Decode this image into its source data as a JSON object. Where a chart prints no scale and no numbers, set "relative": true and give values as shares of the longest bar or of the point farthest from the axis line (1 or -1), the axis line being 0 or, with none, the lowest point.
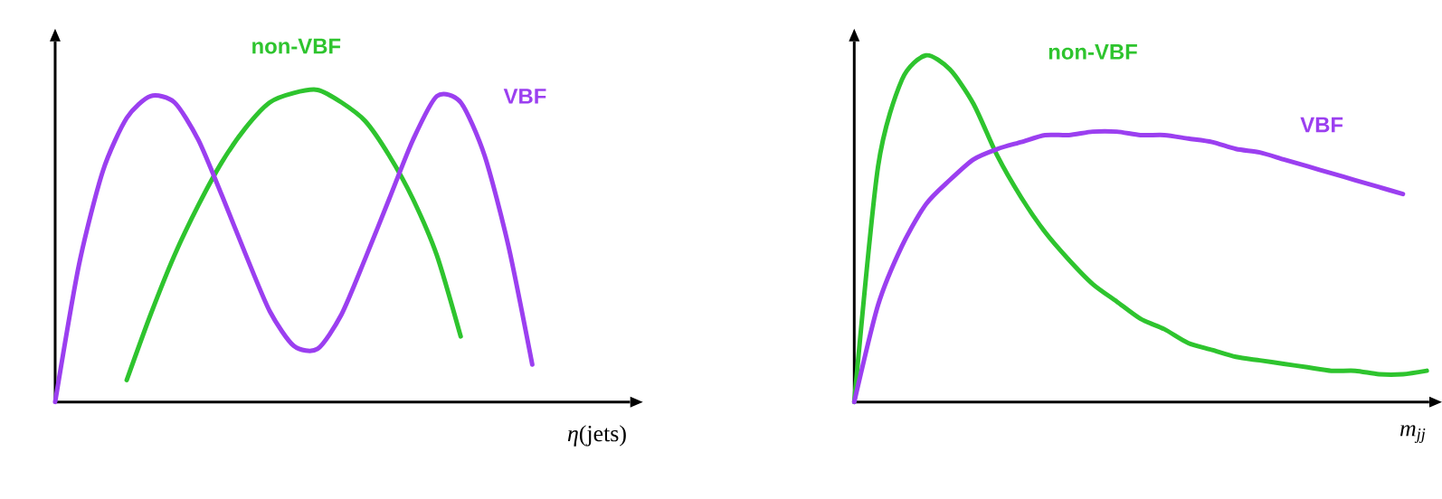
{
  "chart_data": [
    {
      "type": "line",
      "relative": true,
      "xlabel": "*η*(jets)",
      "categories": [
        null,
        null,
        null,
        null,
        null,
        null,
        null,
        null,
        null,
        null,
        null,
        null,
        null,
        null,
        null,
        null,
        null,
        null,
        null,
        null,
        null,
        null,
        null,
        null,
        null
      ],
      "series": [
        {
          "name": "non-VBF",
          "color": "#2ec42e",
          "values": [
            null,
            null,
            null,
            0.07,
            0.28,
            0.47,
            0.63,
            0.77,
            0.88,
            0.96,
            0.99,
            1.0,
            0.96,
            0.9,
            0.79,
            0.65,
            0.47,
            0.21,
            null,
            null,
            null,
            null,
            null,
            null,
            null
          ]
        },
        {
          "name": "VBF",
          "color": "#9b3ff0",
          "values": [
            0,
            0.44,
            0.74,
            0.91,
            0.98,
            0.96,
            0.84,
            0.66,
            0.47,
            0.29,
            0.18,
            0.17,
            0.28,
            0.46,
            0.65,
            0.84,
            0.98,
            0.96,
            0.79,
            0.5,
            0.12,
            null,
            null,
            null,
            null
          ]
        }
      ]
    },
    {
      "type": "line",
      "relative": true,
      "xlabel": "m$_{jj}$",
      "categories": [
        null,
        null,
        null,
        null,
        null,
        null,
        null,
        null,
        null,
        null,
        null,
        null,
        null,
        null,
        null,
        null,
        null,
        null,
        null,
        null,
        null,
        null,
        null,
        null,
        null
      ],
      "series": [
        {
          "name": "non-VBF",
          "color": "#2ec42e",
          "values": [
            0,
            0.68,
            0.93,
            1.0,
            0.96,
            0.86,
            0.71,
            0.59,
            0.49,
            0.41,
            0.34,
            0.29,
            0.24,
            0.21,
            0.17,
            0.15,
            0.13,
            0.12,
            0.11,
            0.1,
            0.09,
            0.09,
            0.08,
            0.08,
            0.09
          ]
        },
        {
          "name": "VBF",
          "color": "#9b3ff0",
          "values": [
            0,
            0.28,
            0.45,
            0.57,
            0.64,
            0.7,
            0.73,
            0.75,
            0.77,
            0.77,
            0.78,
            0.78,
            0.77,
            0.77,
            0.76,
            0.75,
            0.73,
            0.72,
            0.7,
            0.68,
            0.66,
            0.64,
            0.62,
            0.6,
            null
          ]
        }
      ]
    }
  ]
}
